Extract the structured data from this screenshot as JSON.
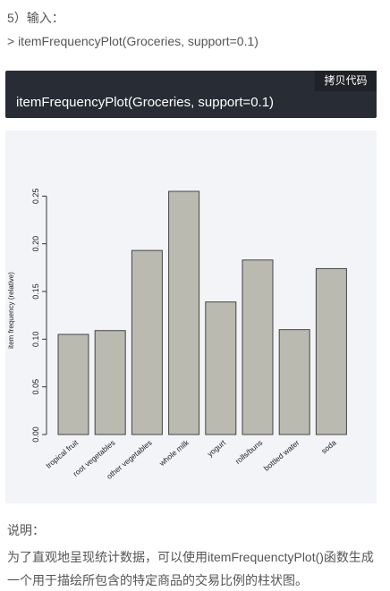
{
  "section": {
    "step_label": "5）输入：",
    "command_line": "> itemFrequencyPlot(Groceries, support=0.1)"
  },
  "code_block": {
    "copy_label": "拷贝代码",
    "code": "itemFrequencyPlot(Groceries, support=0.1)"
  },
  "description": {
    "label": "说明：",
    "text": "为了直观地呈现统计数据，可以使用itemFrequenctyPlot()函数生成一个用于描绘所包含的特定商品的交易比例的柱状图。"
  },
  "colors": {
    "code_bg": "#282c34",
    "bar_fill": "#bbbab0",
    "bar_stroke": "#444444"
  },
  "chart_data": {
    "type": "bar",
    "title": "",
    "xlabel": "",
    "ylabel": "item frequency (relative)",
    "ylim": [
      0,
      0.27
    ],
    "yticks": [
      "0.00",
      "0.05",
      "0.10",
      "0.15",
      "0.20",
      "0.25"
    ],
    "categories": [
      "tropical fruit",
      "root vegetables",
      "other vegetables",
      "whole milk",
      "yogurt",
      "rolls/buns",
      "bottled water",
      "soda"
    ],
    "values": [
      0.105,
      0.109,
      0.193,
      0.255,
      0.139,
      0.183,
      0.11,
      0.174
    ],
    "grid": false,
    "legend": "none"
  }
}
